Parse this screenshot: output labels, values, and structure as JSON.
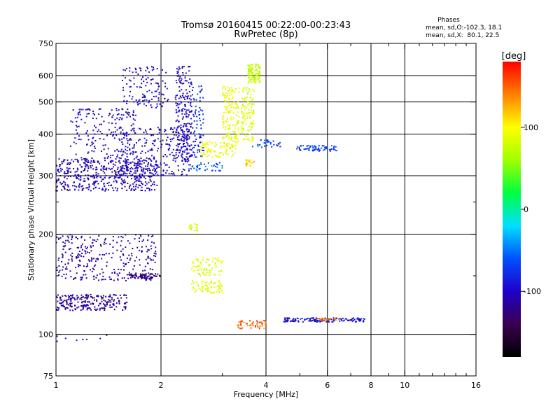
{
  "figure": {
    "title_line1": "Tromsø 20160415 00:22:00-00:23:43",
    "title_line2": "RwPretec (8p)",
    "phases": {
      "heading": "Phases",
      "line_o": "mean, sd,O:-102.3, 18.1",
      "line_x": "mean, sd,X:  80.1, 22.5"
    }
  },
  "colorbar": {
    "unit_label": "[deg]",
    "ticks": [
      {
        "value": 100,
        "label": "100"
      },
      {
        "value": 0,
        "label": "0"
      },
      {
        "value": -100,
        "label": "-100"
      }
    ],
    "range": [
      -180,
      180
    ],
    "colormap": [
      "#000000",
      "#3a0050",
      "#1f00c8",
      "#0050ff",
      "#00e0ff",
      "#00ff40",
      "#a0ff00",
      "#ffff00",
      "#ff8000",
      "#ff0000"
    ]
  },
  "chart_data": {
    "type": "scatter",
    "xlabel": "Frequency [MHz]",
    "ylabel": "Stationary phase Virtual Height [km]",
    "xscale": "log",
    "yscale": "log",
    "xlim": [
      1,
      16
    ],
    "ylim": [
      75,
      750
    ],
    "x_ticks": [
      1,
      2,
      4,
      6,
      8,
      10,
      16
    ],
    "x_tick_labels": [
      "1",
      "2",
      "4",
      "6",
      "8",
      "10",
      "16"
    ],
    "x_gridlines": [
      2,
      4,
      6,
      8,
      10
    ],
    "y_ticks": [
      75,
      100,
      200,
      300,
      400,
      500,
      600,
      750
    ],
    "y_tick_labels": [
      "75",
      "100",
      "200",
      "300",
      "400",
      "500",
      "600",
      "750"
    ],
    "y_gridlines": [
      100,
      200,
      300,
      400,
      500,
      600
    ],
    "grid": true,
    "point_clusters": [
      {
        "x_range": [
          1.0,
          1.95
        ],
        "y_range": [
          270,
          340
        ],
        "phase_deg": -105,
        "count": 500
      },
      {
        "x_range": [
          1.5,
          2.45
        ],
        "y_range": [
          300,
          420
        ],
        "phase_deg": -100,
        "count": 250
      },
      {
        "x_range": [
          1.1,
          1.7
        ],
        "y_range": [
          340,
          480
        ],
        "phase_deg": -100,
        "count": 180
      },
      {
        "x_range": [
          1.55,
          2.1
        ],
        "y_range": [
          480,
          640
        ],
        "phase_deg": -100,
        "count": 120
      },
      {
        "x_range": [
          2.2,
          2.45
        ],
        "y_range": [
          330,
          640
        ],
        "phase_deg": -100,
        "count": 220
      },
      {
        "x_range": [
          2.45,
          2.65
        ],
        "y_range": [
          340,
          560
        ],
        "phase_deg": -80,
        "count": 80
      },
      {
        "x_range": [
          2.4,
          3.0
        ],
        "y_range": [
          310,
          330
        ],
        "phase_deg": -60,
        "count": 40
      },
      {
        "x_range": [
          2.6,
          3.3
        ],
        "y_range": [
          340,
          380
        ],
        "phase_deg": 95,
        "count": 90
      },
      {
        "x_range": [
          3.0,
          3.35
        ],
        "y_range": [
          380,
          560
        ],
        "phase_deg": 90,
        "count": 140
      },
      {
        "x_range": [
          3.4,
          3.7
        ],
        "y_range": [
          380,
          560
        ],
        "phase_deg": 85,
        "count": 110
      },
      {
        "x_range": [
          3.55,
          3.85
        ],
        "y_range": [
          570,
          650
        ],
        "phase_deg": 75,
        "count": 110
      },
      {
        "x_range": [
          3.5,
          3.7
        ],
        "y_range": [
          320,
          335
        ],
        "phase_deg": 120,
        "count": 20
      },
      {
        "x_range": [
          3.6,
          4.4
        ],
        "y_range": [
          365,
          385
        ],
        "phase_deg": -70,
        "count": 30
      },
      {
        "x_range": [
          4.9,
          6.4
        ],
        "y_range": [
          355,
          370
        ],
        "phase_deg": -70,
        "count": 70
      },
      {
        "x_range": [
          1.0,
          1.95
        ],
        "y_range": [
          145,
          200
        ],
        "phase_deg": -110,
        "count": 300
      },
      {
        "x_range": [
          1.0,
          1.6
        ],
        "y_range": [
          118,
          132
        ],
        "phase_deg": -115,
        "count": 220
      },
      {
        "x_range": [
          1.6,
          2.0
        ],
        "y_range": [
          147,
          152
        ],
        "phase_deg": -130,
        "count": 60
      },
      {
        "x_range": [
          2.4,
          2.55
        ],
        "y_range": [
          205,
          215
        ],
        "phase_deg": 80,
        "count": 20
      },
      {
        "x_range": [
          2.45,
          3.0
        ],
        "y_range": [
          150,
          170
        ],
        "phase_deg": 85,
        "count": 70
      },
      {
        "x_range": [
          2.45,
          3.0
        ],
        "y_range": [
          133,
          145
        ],
        "phase_deg": 85,
        "count": 70
      },
      {
        "x_range": [
          3.3,
          4.0
        ],
        "y_range": [
          104,
          110
        ],
        "phase_deg": 150,
        "count": 50
      },
      {
        "x_range": [
          4.5,
          7.7
        ],
        "y_range": [
          109,
          112
        ],
        "phase_deg": -90,
        "count": 140
      },
      {
        "x_range": [
          5.6,
          6.5
        ],
        "y_range": [
          110,
          112
        ],
        "phase_deg": 140,
        "count": 25
      },
      {
        "x_range": [
          1.0,
          1.4
        ],
        "y_range": [
          95,
          100
        ],
        "phase_deg": -110,
        "count": 8
      }
    ]
  }
}
